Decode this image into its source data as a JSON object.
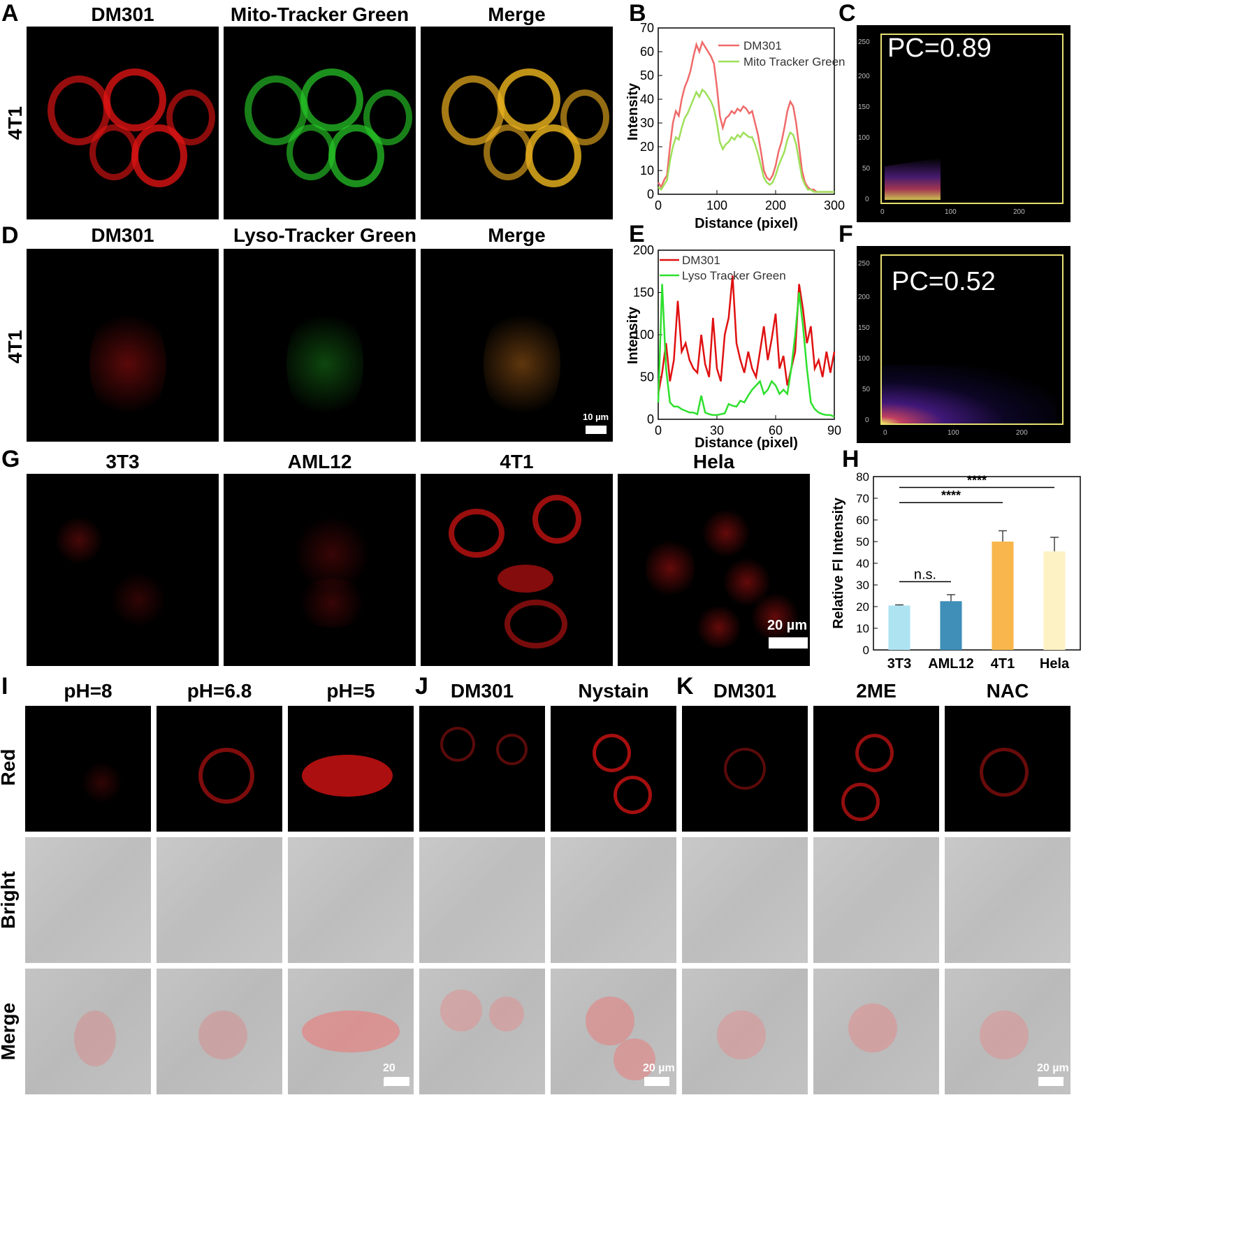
{
  "panel_letters": {
    "A": "A",
    "B": "B",
    "C": "C",
    "D": "D",
    "E": "E",
    "F": "F",
    "G": "G",
    "H": "H",
    "I": "I",
    "J": "J",
    "K": "K"
  },
  "row_a": {
    "columns": [
      "DM301",
      "Mito-Tracker Green",
      "Merge"
    ],
    "row_label": "4T1"
  },
  "row_d": {
    "columns": [
      "DM301",
      "Lyso-Tracker Green",
      "Merge"
    ],
    "row_label": "4T1",
    "scale": "10 µm"
  },
  "row_g": {
    "columns": [
      "3T3",
      "AML12",
      "4T1",
      "Hela"
    ],
    "scale": "20 µm"
  },
  "row_i": {
    "columns": [
      "pH=8",
      "pH=6.8",
      "pH=5"
    ]
  },
  "row_j": {
    "columns": [
      "DM301",
      "Nystain"
    ]
  },
  "row_k": {
    "columns": [
      "DM301",
      "2ME",
      "NAC"
    ]
  },
  "row_labels_bottom": [
    "Red",
    "Bright",
    "Merge"
  ],
  "scale_bottom": "20 µm",
  "panel_c": {
    "pc": "PC=0.89",
    "ticks_y": [
      "250",
      "200",
      "150",
      "100",
      "50",
      "0"
    ],
    "ticks_x": [
      "0",
      "100",
      "200"
    ]
  },
  "panel_f": {
    "pc": "PC=0.52",
    "ticks_y": [
      "250",
      "200",
      "150",
      "100",
      "50",
      "0"
    ],
    "ticks_x": [
      "0",
      "100",
      "200"
    ]
  },
  "chart_data": [
    {
      "panel": "B",
      "type": "line",
      "xlabel": "Distance (pixel)",
      "ylabel": "Intensity",
      "xlim": [
        0,
        300
      ],
      "ylim": [
        0,
        70
      ],
      "xticks": [
        0,
        100,
        200,
        300
      ],
      "yticks": [
        0,
        10,
        20,
        30,
        40,
        50,
        60,
        70
      ],
      "legend_position": "top-right",
      "series": [
        {
          "name": "DM301",
          "color": "#f06a6a",
          "x": [
            0,
            5,
            10,
            15,
            20,
            25,
            30,
            35,
            40,
            45,
            50,
            55,
            60,
            65,
            70,
            75,
            80,
            85,
            90,
            95,
            100,
            105,
            110,
            115,
            120,
            125,
            130,
            135,
            140,
            145,
            150,
            155,
            160,
            165,
            170,
            175,
            180,
            185,
            190,
            195,
            200,
            205,
            210,
            215,
            220,
            225,
            230,
            235,
            240,
            245,
            250,
            255,
            260,
            265,
            270,
            275,
            280,
            285,
            290,
            295,
            300
          ],
          "y": [
            5,
            3,
            6,
            8,
            20,
            30,
            35,
            33,
            40,
            45,
            48,
            52,
            58,
            63,
            60,
            64,
            62,
            60,
            58,
            55,
            45,
            33,
            28,
            32,
            33,
            35,
            34,
            36,
            35,
            37,
            36,
            34,
            35,
            30,
            25,
            18,
            10,
            7,
            6,
            8,
            12,
            18,
            22,
            28,
            35,
            39,
            37,
            30,
            20,
            10,
            5,
            3,
            2,
            2,
            1,
            1,
            1,
            1,
            1,
            1,
            1
          ]
        },
        {
          "name": "Mito Tracker Green",
          "color": "#9ee05a",
          "x": [
            0,
            5,
            10,
            15,
            20,
            25,
            30,
            35,
            40,
            45,
            50,
            55,
            60,
            65,
            70,
            75,
            80,
            85,
            90,
            95,
            100,
            105,
            110,
            115,
            120,
            125,
            130,
            135,
            140,
            145,
            150,
            155,
            160,
            165,
            170,
            175,
            180,
            185,
            190,
            195,
            200,
            205,
            210,
            215,
            220,
            225,
            230,
            235,
            240,
            245,
            250,
            255,
            260,
            265,
            270,
            275,
            280,
            285,
            290,
            295,
            300
          ],
          "y": [
            3,
            2,
            4,
            6,
            14,
            20,
            24,
            23,
            28,
            32,
            34,
            37,
            40,
            43,
            41,
            44,
            43,
            41,
            39,
            36,
            30,
            22,
            19,
            21,
            22,
            24,
            23,
            25,
            24,
            26,
            25,
            24,
            24,
            21,
            17,
            12,
            7,
            5,
            4,
            5,
            8,
            12,
            15,
            18,
            23,
            26,
            25,
            21,
            14,
            7,
            4,
            2,
            2,
            1,
            1,
            1,
            1,
            1,
            1,
            1,
            1
          ]
        }
      ]
    },
    {
      "panel": "E",
      "type": "line",
      "xlabel": "Distance (pixel)",
      "ylabel": "Intensity",
      "xlim": [
        0,
        90
      ],
      "ylim": [
        0,
        200
      ],
      "xticks": [
        0,
        30,
        60,
        90
      ],
      "yticks": [
        0,
        50,
        100,
        150,
        200
      ],
      "legend_position": "top-left",
      "series": [
        {
          "name": "DM301",
          "color": "#e01010",
          "x": [
            0,
            2,
            4,
            6,
            8,
            10,
            12,
            14,
            16,
            18,
            20,
            22,
            24,
            26,
            28,
            30,
            32,
            34,
            36,
            38,
            40,
            42,
            44,
            46,
            48,
            50,
            52,
            54,
            56,
            58,
            60,
            62,
            64,
            66,
            68,
            70,
            72,
            74,
            76,
            78,
            80,
            82,
            84,
            86,
            88,
            90
          ],
          "y": [
            30,
            55,
            90,
            45,
            70,
            140,
            80,
            90,
            70,
            60,
            55,
            100,
            65,
            50,
            120,
            60,
            45,
            100,
            120,
            170,
            90,
            70,
            55,
            80,
            60,
            50,
            80,
            110,
            70,
            95,
            125,
            60,
            75,
            40,
            60,
            80,
            160,
            130,
            90,
            110,
            60,
            70,
            50,
            80,
            55,
            80
          ]
        },
        {
          "name": "Lyso Tracker Green",
          "color": "#2ee02e",
          "x": [
            0,
            2,
            4,
            6,
            8,
            10,
            12,
            14,
            16,
            18,
            20,
            22,
            24,
            26,
            28,
            30,
            32,
            34,
            36,
            38,
            40,
            42,
            44,
            46,
            48,
            50,
            52,
            54,
            56,
            58,
            60,
            62,
            64,
            66,
            68,
            70,
            72,
            74,
            76,
            78,
            80,
            82,
            84,
            86,
            88,
            90
          ],
          "y": [
            20,
            160,
            60,
            20,
            15,
            15,
            12,
            10,
            8,
            8,
            6,
            28,
            8,
            6,
            5,
            5,
            6,
            7,
            18,
            16,
            15,
            22,
            20,
            28,
            35,
            40,
            45,
            30,
            35,
            45,
            40,
            30,
            35,
            30,
            60,
            100,
            150,
            110,
            60,
            20,
            12,
            8,
            6,
            5,
            5,
            3
          ]
        }
      ]
    },
    {
      "panel": "H",
      "type": "bar",
      "ylabel": "Relative Fl Intensity",
      "ylim": [
        0,
        80
      ],
      "yticks": [
        0,
        10,
        20,
        30,
        40,
        50,
        60,
        70,
        80
      ],
      "categories": [
        "3T3",
        "AML12",
        "4T1",
        "Hela"
      ],
      "values": [
        20.5,
        22.5,
        50,
        45.5
      ],
      "errors": [
        0.3,
        3,
        5,
        6.5
      ],
      "colors": [
        "#aee4f2",
        "#3f8fb8",
        "#f8b64c",
        "#fcf2c4"
      ],
      "annotations": [
        {
          "from": "3T3",
          "to": "AML12",
          "text": "n.s."
        },
        {
          "from": "3T3",
          "to": "4T1",
          "text": "****"
        },
        {
          "from": "3T3",
          "to": "Hela",
          "text": "****"
        }
      ]
    }
  ]
}
